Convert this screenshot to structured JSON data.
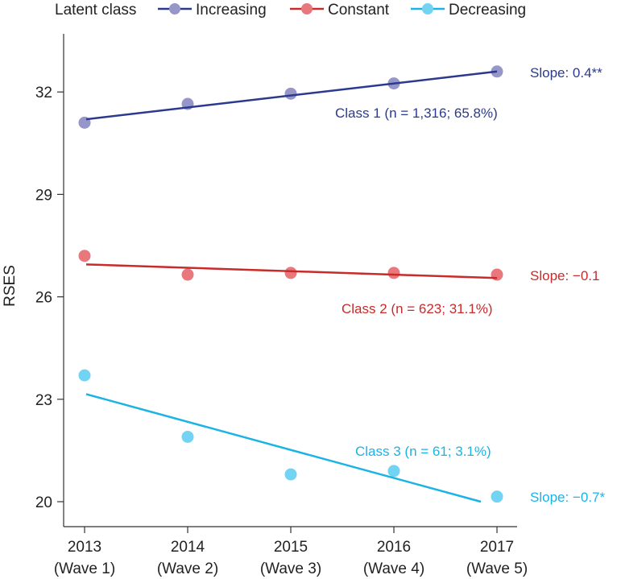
{
  "chart_data": {
    "type": "line",
    "ylabel": "RSES",
    "xlabel": "",
    "ylim": [
      19.3,
      33.6
    ],
    "yticks": [
      20,
      23,
      26,
      29,
      32
    ],
    "categories": [
      {
        "year": "2013",
        "wave": "(Wave 1)"
      },
      {
        "year": "2014",
        "wave": "(Wave 2)"
      },
      {
        "year": "2015",
        "wave": "(Wave 3)"
      },
      {
        "year": "2016",
        "wave": "(Wave 4)"
      },
      {
        "year": "2017",
        "wave": "(Wave 5)"
      }
    ],
    "legend": {
      "title": "Latent class",
      "placement": "top"
    },
    "series": [
      {
        "name": "Increasing",
        "line_color": "#2b3a8f",
        "point_color": "#9696c8",
        "label_color": "#2b3a8f",
        "values": [
          31.1,
          31.65,
          31.95,
          32.25,
          32.6
        ],
        "fit": [
          31.2,
          32.6
        ],
        "class_label": "Class 1 (n = 1,316; 65.8%)",
        "slope_label": "Slope: 0.4**"
      },
      {
        "name": "Constant",
        "line_color": "#c92a2a",
        "point_color": "#e8787c",
        "label_color": "#c92a2a",
        "values": [
          27.2,
          26.65,
          26.7,
          26.7,
          26.65
        ],
        "fit": [
          26.95,
          26.55
        ],
        "class_label": "Class 2 (n = 623; 31.1%)",
        "slope_label": "Slope: −0.1"
      },
      {
        "name": "Decreasing",
        "line_color": "#1ab3e6",
        "point_color": "#72d4f2",
        "label_color": "#1ab3e6",
        "values": [
          23.7,
          21.9,
          20.8,
          20.9,
          20.15
        ],
        "fit": [
          23.15,
          20.0
        ],
        "class_label": "Class 3 (n = 61; 3.1%)",
        "slope_label": "Slope: −0.7*"
      }
    ]
  }
}
